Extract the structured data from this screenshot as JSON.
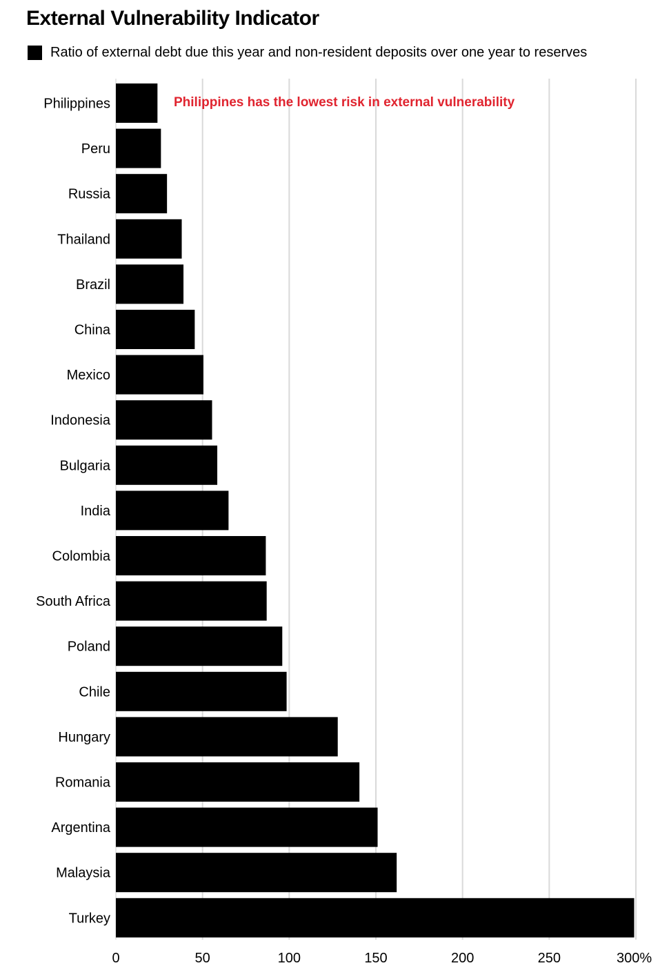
{
  "chart_data": {
    "type": "bar",
    "orientation": "horizontal",
    "title": "External Vulnerability Indicator",
    "legend": [
      {
        "label": "Ratio of external debt due this year and non-resident deposits over one year to reserves",
        "color": "#000000"
      }
    ],
    "legend_position": "top-left",
    "categories": [
      "Philippines",
      "Peru",
      "Russia",
      "Thailand",
      "Brazil",
      "China",
      "Mexico",
      "Indonesia",
      "Bulgaria",
      "India",
      "Colombia",
      "South Africa",
      "Poland",
      "Chile",
      "Hungary",
      "Romania",
      "Argentina",
      "Malaysia",
      "Turkey"
    ],
    "values": [
      24,
      26,
      29.5,
      38,
      39,
      45.5,
      50.5,
      55.5,
      58.5,
      65,
      86.5,
      87,
      96,
      98.5,
      128,
      140.5,
      151,
      162,
      299
    ],
    "bar_color": "#000000",
    "xlim": [
      0,
      300
    ],
    "xticks": [
      0,
      50,
      100,
      150,
      200,
      250,
      300
    ],
    "xtick_labels": [
      "0",
      "50",
      "100",
      "150",
      "200",
      "250",
      "300%"
    ],
    "grid": true,
    "grid_color": "#d9d9d9",
    "annotation": {
      "text": "Philippines has the lowest risk in external vulnerability",
      "color": "#e0242f"
    }
  }
}
